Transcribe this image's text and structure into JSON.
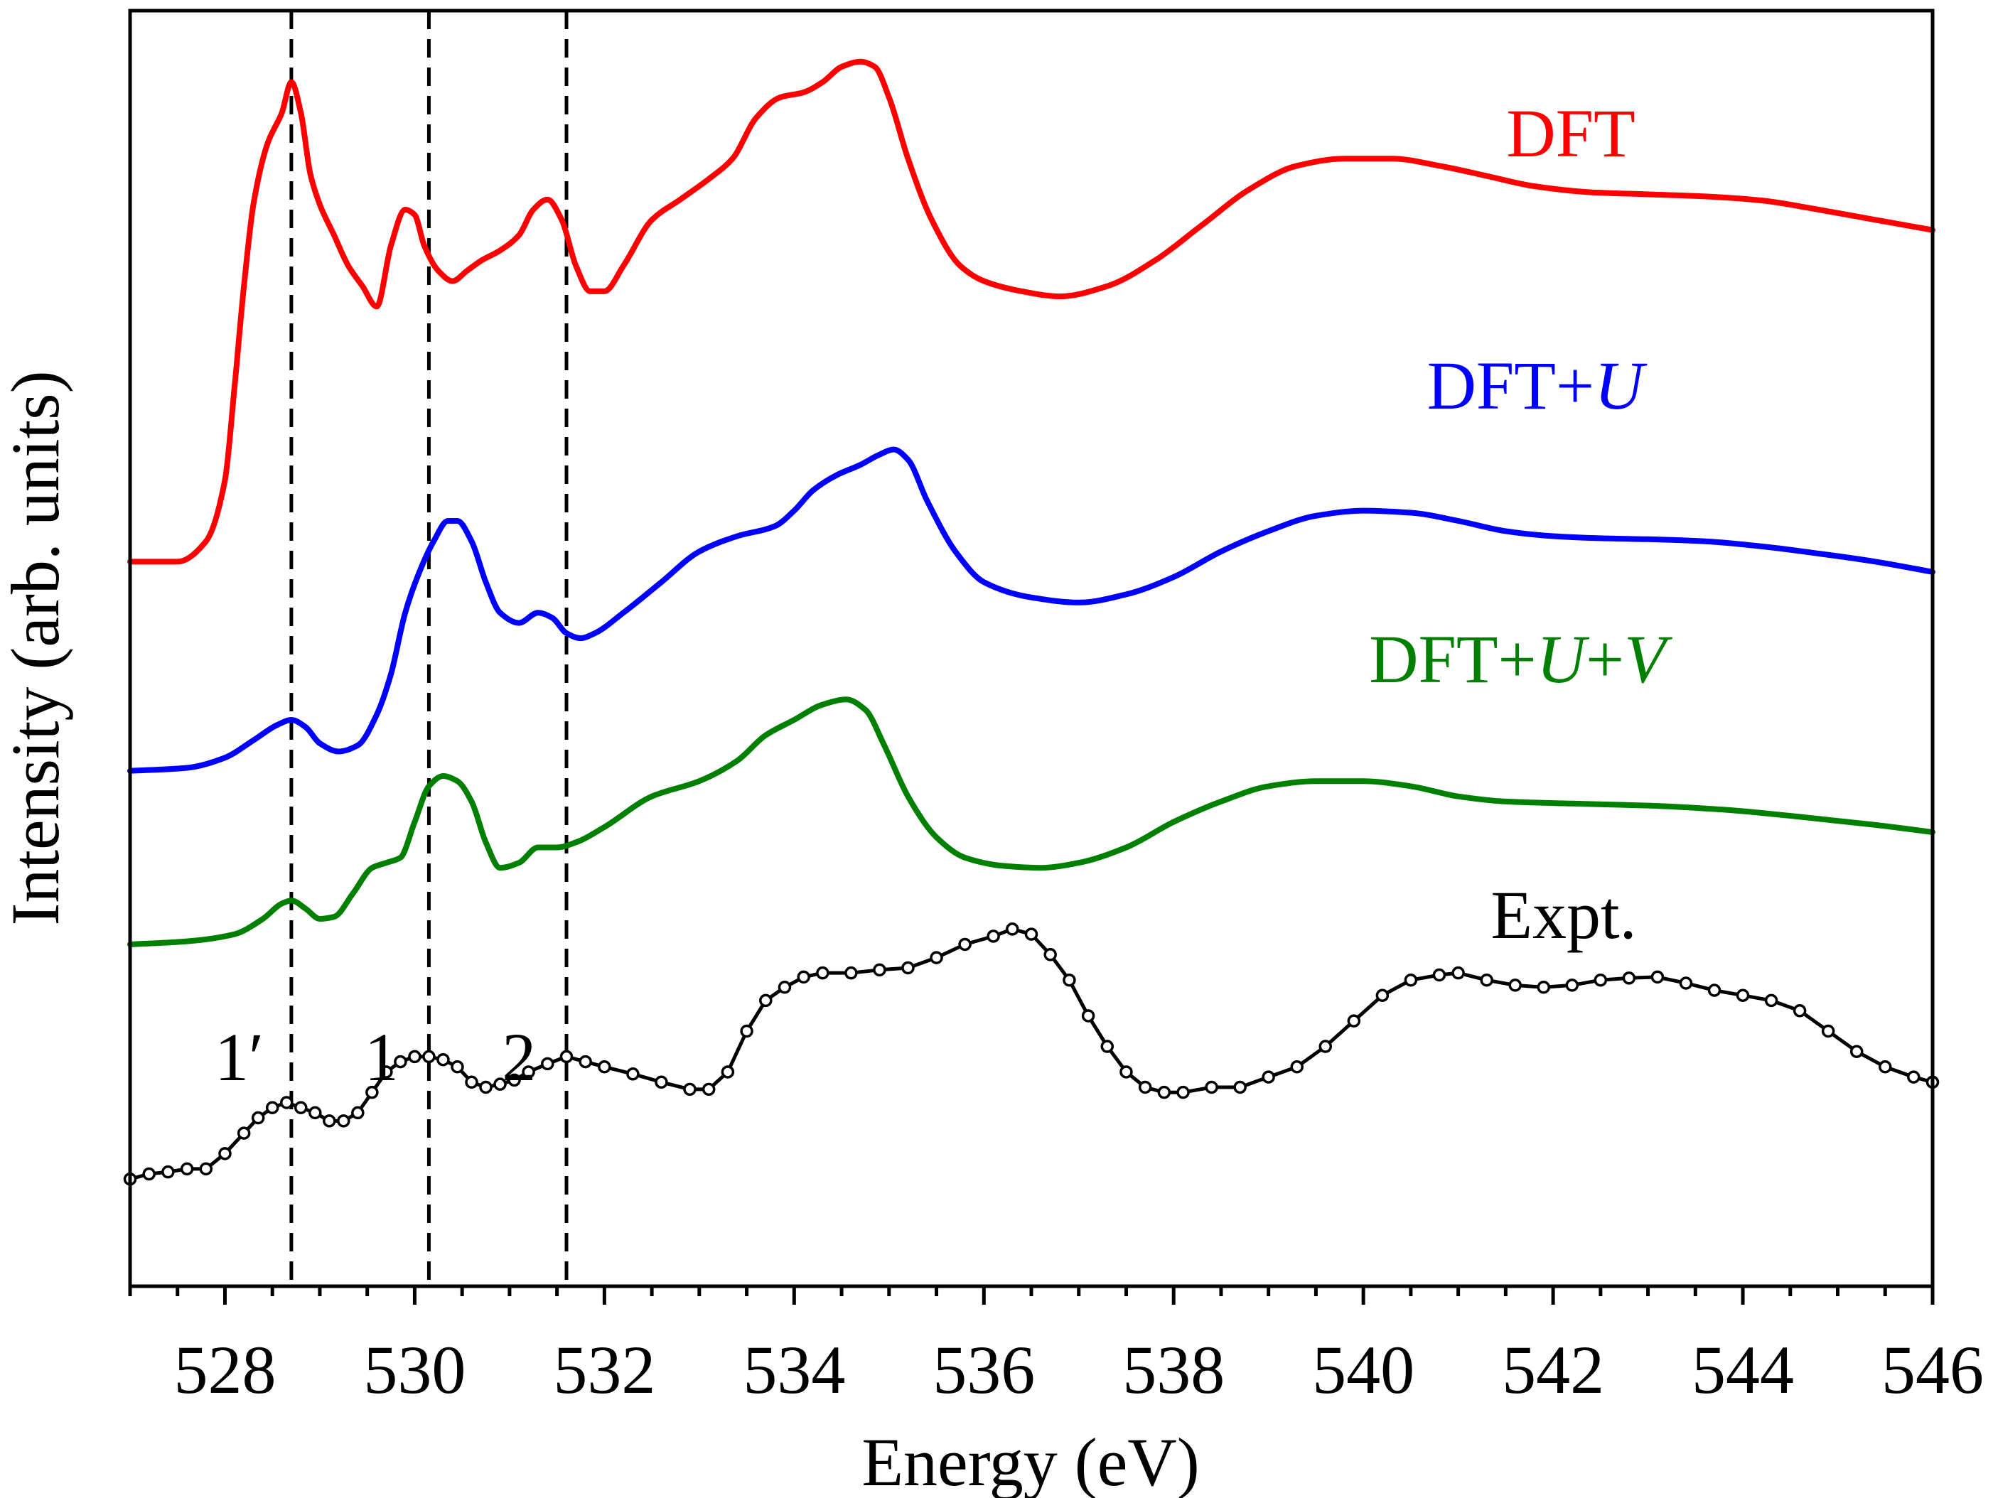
{
  "chart_data": {
    "type": "line",
    "xlabel": "Energy (eV)",
    "ylabel": "Intensity (arb. units)",
    "xlim": [
      527,
      546
    ],
    "xticks": [
      "528",
      "530",
      "532",
      "534",
      "536",
      "538",
      "540",
      "542",
      "544",
      "546"
    ],
    "y_ticks_shown": false,
    "reference_lines": {
      "energies": [
        528.7,
        530.15,
        531.6
      ],
      "style": "dashed"
    },
    "peak_labels": [
      {
        "text": "1′",
        "energy": 528.15
      },
      {
        "text": "1",
        "energy": 529.65
      },
      {
        "text": "2",
        "energy": 531.1
      }
    ],
    "series": [
      {
        "name": "DFT",
        "label_parts": [
          {
            "text": "DFT",
            "italic": false
          }
        ],
        "color": "#ff0000",
        "points": [
          [
            527.0,
            0.31
          ],
          [
            527.5,
            0.31
          ],
          [
            527.8,
            0.33
          ],
          [
            528.0,
            0.39
          ],
          [
            528.1,
            0.48
          ],
          [
            528.2,
            0.58
          ],
          [
            528.3,
            0.66
          ],
          [
            528.45,
            0.72
          ],
          [
            528.6,
            0.75
          ],
          [
            528.7,
            0.78
          ],
          [
            528.8,
            0.75
          ],
          [
            528.9,
            0.69
          ],
          [
            529.0,
            0.66
          ],
          [
            529.15,
            0.63
          ],
          [
            529.3,
            0.6
          ],
          [
            529.45,
            0.58
          ],
          [
            529.6,
            0.56
          ],
          [
            529.75,
            0.62
          ],
          [
            529.9,
            0.655
          ],
          [
            530.0,
            0.65
          ],
          [
            530.1,
            0.62
          ],
          [
            530.25,
            0.595
          ],
          [
            530.4,
            0.585
          ],
          [
            530.55,
            0.595
          ],
          [
            530.7,
            0.605
          ],
          [
            530.9,
            0.615
          ],
          [
            531.1,
            0.63
          ],
          [
            531.25,
            0.655
          ],
          [
            531.4,
            0.665
          ],
          [
            531.55,
            0.645
          ],
          [
            531.7,
            0.6
          ],
          [
            531.85,
            0.575
          ],
          [
            532.0,
            0.575
          ],
          [
            532.2,
            0.6
          ],
          [
            532.5,
            0.645
          ],
          [
            532.8,
            0.665
          ],
          [
            533.1,
            0.685
          ],
          [
            533.35,
            0.705
          ],
          [
            533.6,
            0.745
          ],
          [
            533.85,
            0.765
          ],
          [
            534.1,
            0.77
          ],
          [
            534.3,
            0.78
          ],
          [
            534.5,
            0.795
          ],
          [
            534.7,
            0.8
          ],
          [
            534.85,
            0.795
          ],
          [
            535.0,
            0.765
          ],
          [
            535.2,
            0.705
          ],
          [
            535.45,
            0.645
          ],
          [
            535.75,
            0.6
          ],
          [
            536.0,
            0.585
          ],
          [
            536.4,
            0.575
          ],
          [
            536.8,
            0.57
          ],
          [
            537.3,
            0.58
          ],
          [
            537.8,
            0.605
          ],
          [
            538.3,
            0.64
          ],
          [
            538.8,
            0.675
          ],
          [
            539.3,
            0.698
          ],
          [
            539.8,
            0.705
          ],
          [
            540.3,
            0.705
          ],
          [
            540.8,
            0.698
          ],
          [
            541.3,
            0.688
          ],
          [
            541.8,
            0.678
          ],
          [
            542.4,
            0.672
          ],
          [
            543.0,
            0.67
          ],
          [
            543.6,
            0.668
          ],
          [
            544.2,
            0.664
          ],
          [
            544.8,
            0.655
          ],
          [
            545.4,
            0.645
          ],
          [
            546.0,
            0.635
          ]
        ]
      },
      {
        "name": "DFT+U",
        "label_parts": [
          {
            "text": "DFT+",
            "italic": false
          },
          {
            "text": "U",
            "italic": true
          }
        ],
        "color": "#0000ff",
        "points": [
          [
            527.0,
            0.105
          ],
          [
            527.6,
            0.108
          ],
          [
            528.0,
            0.118
          ],
          [
            528.3,
            0.135
          ],
          [
            528.55,
            0.15
          ],
          [
            528.7,
            0.155
          ],
          [
            528.85,
            0.148
          ],
          [
            529.0,
            0.132
          ],
          [
            529.2,
            0.124
          ],
          [
            529.4,
            0.13
          ],
          [
            529.6,
            0.16
          ],
          [
            529.75,
            0.2
          ],
          [
            529.9,
            0.26
          ],
          [
            530.05,
            0.3
          ],
          [
            530.2,
            0.33
          ],
          [
            530.35,
            0.35
          ],
          [
            530.45,
            0.35
          ],
          [
            530.6,
            0.33
          ],
          [
            530.75,
            0.29
          ],
          [
            530.9,
            0.26
          ],
          [
            531.1,
            0.25
          ],
          [
            531.3,
            0.26
          ],
          [
            531.45,
            0.255
          ],
          [
            531.6,
            0.24
          ],
          [
            531.75,
            0.235
          ],
          [
            531.9,
            0.24
          ],
          [
            532.2,
            0.26
          ],
          [
            532.6,
            0.29
          ],
          [
            533.0,
            0.32
          ],
          [
            533.4,
            0.335
          ],
          [
            533.8,
            0.345
          ],
          [
            534.0,
            0.36
          ],
          [
            534.2,
            0.38
          ],
          [
            534.45,
            0.395
          ],
          [
            534.7,
            0.405
          ],
          [
            534.9,
            0.415
          ],
          [
            535.05,
            0.42
          ],
          [
            535.2,
            0.41
          ],
          [
            535.4,
            0.37
          ],
          [
            535.7,
            0.32
          ],
          [
            536.0,
            0.29
          ],
          [
            536.5,
            0.275
          ],
          [
            537.0,
            0.27
          ],
          [
            537.5,
            0.278
          ],
          [
            538.0,
            0.295
          ],
          [
            538.5,
            0.32
          ],
          [
            539.0,
            0.34
          ],
          [
            539.5,
            0.355
          ],
          [
            540.0,
            0.36
          ],
          [
            540.5,
            0.358
          ],
          [
            541.0,
            0.35
          ],
          [
            541.5,
            0.34
          ],
          [
            542.0,
            0.335
          ],
          [
            542.5,
            0.333
          ],
          [
            543.0,
            0.332
          ],
          [
            543.6,
            0.33
          ],
          [
            544.2,
            0.325
          ],
          [
            544.8,
            0.318
          ],
          [
            545.4,
            0.31
          ],
          [
            546.0,
            0.3
          ]
        ]
      },
      {
        "name": "DFT+U+V",
        "label_parts": [
          {
            "text": "DFT+",
            "italic": false
          },
          {
            "text": "U",
            "italic": true
          },
          {
            "text": "+",
            "italic": false
          },
          {
            "text": "V",
            "italic": true
          }
        ],
        "color": "#008000",
        "points": [
          [
            527.0,
            -0.065
          ],
          [
            527.6,
            -0.062
          ],
          [
            528.1,
            -0.055
          ],
          [
            528.4,
            -0.04
          ],
          [
            528.6,
            -0.025
          ],
          [
            528.7,
            -0.022
          ],
          [
            528.85,
            -0.03
          ],
          [
            529.0,
            -0.04
          ],
          [
            529.15,
            -0.038
          ],
          [
            529.35,
            -0.015
          ],
          [
            529.55,
            0.01
          ],
          [
            529.7,
            0.015
          ],
          [
            529.85,
            0.02
          ],
          [
            530.0,
            0.055
          ],
          [
            530.15,
            0.09
          ],
          [
            530.3,
            0.1
          ],
          [
            530.45,
            0.095
          ],
          [
            530.6,
            0.075
          ],
          [
            530.75,
            0.035
          ],
          [
            530.9,
            0.01
          ],
          [
            531.1,
            0.015
          ],
          [
            531.3,
            0.03
          ],
          [
            531.5,
            0.03
          ],
          [
            531.7,
            0.035
          ],
          [
            532.0,
            0.05
          ],
          [
            532.5,
            0.08
          ],
          [
            533.0,
            0.095
          ],
          [
            533.4,
            0.115
          ],
          [
            533.7,
            0.14
          ],
          [
            534.0,
            0.155
          ],
          [
            534.3,
            0.17
          ],
          [
            534.55,
            0.175
          ],
          [
            534.75,
            0.165
          ],
          [
            534.95,
            0.13
          ],
          [
            535.2,
            0.08
          ],
          [
            535.5,
            0.04
          ],
          [
            535.8,
            0.02
          ],
          [
            536.2,
            0.012
          ],
          [
            536.6,
            0.01
          ],
          [
            537.0,
            0.015
          ],
          [
            537.5,
            0.03
          ],
          [
            538.0,
            0.055
          ],
          [
            538.5,
            0.075
          ],
          [
            539.0,
            0.09
          ],
          [
            539.5,
            0.095
          ],
          [
            540.0,
            0.095
          ],
          [
            540.5,
            0.09
          ],
          [
            541.0,
            0.08
          ],
          [
            541.5,
            0.075
          ],
          [
            542.2,
            0.073
          ],
          [
            543.0,
            0.071
          ],
          [
            543.8,
            0.067
          ],
          [
            544.6,
            0.06
          ],
          [
            545.4,
            0.052
          ],
          [
            546.0,
            0.045
          ]
        ]
      },
      {
        "name": "Expt.",
        "label_parts": [
          {
            "text": "Expt.",
            "italic": false
          }
        ],
        "color": "#000000",
        "markers": "open-circles",
        "points": [
          [
            527.0,
            -0.295
          ],
          [
            527.2,
            -0.29
          ],
          [
            527.4,
            -0.288
          ],
          [
            527.6,
            -0.285
          ],
          [
            527.8,
            -0.285
          ],
          [
            528.0,
            -0.27
          ],
          [
            528.2,
            -0.25
          ],
          [
            528.35,
            -0.235
          ],
          [
            528.5,
            -0.225
          ],
          [
            528.65,
            -0.22
          ],
          [
            528.8,
            -0.225
          ],
          [
            528.95,
            -0.23
          ],
          [
            529.1,
            -0.238
          ],
          [
            529.25,
            -0.238
          ],
          [
            529.4,
            -0.23
          ],
          [
            529.55,
            -0.21
          ],
          [
            529.7,
            -0.19
          ],
          [
            529.85,
            -0.18
          ],
          [
            530.0,
            -0.175
          ],
          [
            530.15,
            -0.175
          ],
          [
            530.3,
            -0.178
          ],
          [
            530.45,
            -0.185
          ],
          [
            530.6,
            -0.2
          ],
          [
            530.75,
            -0.205
          ],
          [
            530.9,
            -0.202
          ],
          [
            531.05,
            -0.198
          ],
          [
            531.2,
            -0.19
          ],
          [
            531.4,
            -0.182
          ],
          [
            531.6,
            -0.175
          ],
          [
            531.8,
            -0.18
          ],
          [
            532.0,
            -0.185
          ],
          [
            532.3,
            -0.192
          ],
          [
            532.6,
            -0.2
          ],
          [
            532.9,
            -0.207
          ],
          [
            533.1,
            -0.207
          ],
          [
            533.3,
            -0.19
          ],
          [
            533.5,
            -0.15
          ],
          [
            533.7,
            -0.12
          ],
          [
            533.9,
            -0.107
          ],
          [
            534.1,
            -0.097
          ],
          [
            534.3,
            -0.093
          ],
          [
            534.6,
            -0.093
          ],
          [
            534.9,
            -0.09
          ],
          [
            535.2,
            -0.088
          ],
          [
            535.5,
            -0.078
          ],
          [
            535.8,
            -0.065
          ],
          [
            536.1,
            -0.057
          ],
          [
            536.3,
            -0.05
          ],
          [
            536.5,
            -0.055
          ],
          [
            536.7,
            -0.075
          ],
          [
            536.9,
            -0.1
          ],
          [
            537.1,
            -0.135
          ],
          [
            537.3,
            -0.165
          ],
          [
            537.5,
            -0.19
          ],
          [
            537.7,
            -0.205
          ],
          [
            537.9,
            -0.21
          ],
          [
            538.1,
            -0.21
          ],
          [
            538.4,
            -0.205
          ],
          [
            538.7,
            -0.205
          ],
          [
            539.0,
            -0.195
          ],
          [
            539.3,
            -0.185
          ],
          [
            539.6,
            -0.165
          ],
          [
            539.9,
            -0.14
          ],
          [
            540.2,
            -0.115
          ],
          [
            540.5,
            -0.1
          ],
          [
            540.8,
            -0.095
          ],
          [
            541.0,
            -0.093
          ],
          [
            541.3,
            -0.1
          ],
          [
            541.6,
            -0.105
          ],
          [
            541.9,
            -0.107
          ],
          [
            542.2,
            -0.105
          ],
          [
            542.5,
            -0.1
          ],
          [
            542.8,
            -0.098
          ],
          [
            543.1,
            -0.097
          ],
          [
            543.4,
            -0.103
          ],
          [
            543.7,
            -0.11
          ],
          [
            544.0,
            -0.115
          ],
          [
            544.3,
            -0.12
          ],
          [
            544.6,
            -0.13
          ],
          [
            544.9,
            -0.15
          ],
          [
            545.2,
            -0.17
          ],
          [
            545.5,
            -0.185
          ],
          [
            545.8,
            -0.195
          ],
          [
            546.0,
            -0.2
          ]
        ]
      }
    ]
  }
}
